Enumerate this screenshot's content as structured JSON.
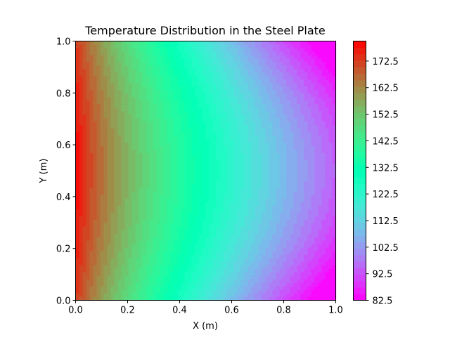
{
  "chart_data": {
    "type": "heatmap",
    "title": "Temperature Distribution in the Steel Plate",
    "xlabel": "X (m)",
    "ylabel": "Y (m)",
    "xlim": [
      0.0,
      1.0
    ],
    "ylim": [
      0.0,
      1.0
    ],
    "x_ticks": [
      "0.0",
      "0.2",
      "0.4",
      "0.6",
      "0.8",
      "1.0"
    ],
    "y_ticks": [
      "0.0",
      "0.2",
      "0.4",
      "0.6",
      "0.8",
      "1.0"
    ],
    "colormap": "rainbow",
    "grid": false,
    "contour_levels": 40,
    "field": {
      "description_of_shape": "contour field hottest along x=0, coolest at corners x=1; contours bow toward x=1 at y=0.5",
      "min": 82.5,
      "max": 180.0,
      "samples": [
        {
          "x": 0.0,
          "y": 0.5,
          "value": 180.0
        },
        {
          "x": 0.2,
          "y": 0.5,
          "value": 147.0
        },
        {
          "x": 0.4,
          "y": 0.5,
          "value": 130.0
        },
        {
          "x": 0.6,
          "y": 0.5,
          "value": 116.0
        },
        {
          "x": 0.8,
          "y": 0.5,
          "value": 104.0
        },
        {
          "x": 1.0,
          "y": 0.5,
          "value": 94.0
        },
        {
          "x": 1.0,
          "y": 0.0,
          "value": 82.5
        },
        {
          "x": 1.0,
          "y": 1.0,
          "value": 82.5
        }
      ]
    },
    "colorbar": {
      "ticks": [
        "82.5",
        "92.5",
        "102.5",
        "112.5",
        "122.5",
        "132.5",
        "142.5",
        "152.5",
        "162.5",
        "172.5"
      ],
      "min": 82.5,
      "max": 180.0
    }
  }
}
